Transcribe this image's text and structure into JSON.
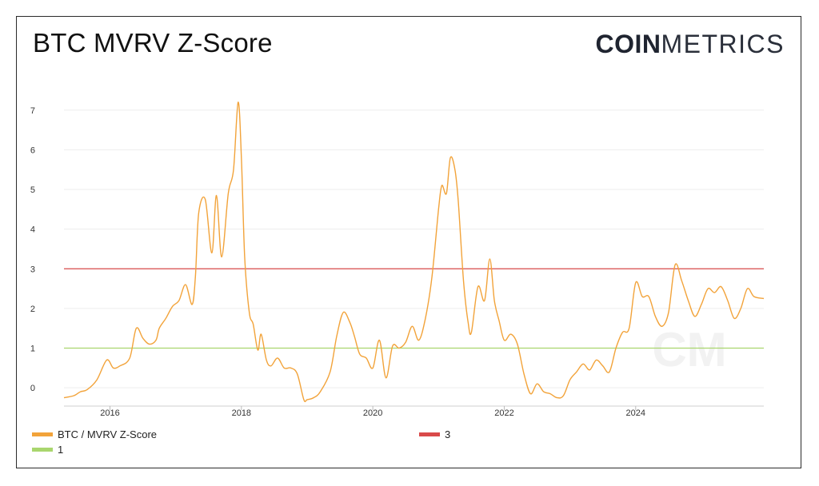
{
  "title": "BTC MVRV Z-Score",
  "logo": {
    "bold": "COIN",
    "light": "METRICS",
    "watermark": "CM"
  },
  "chart_data": {
    "type": "line",
    "title": "BTC MVRV Z-Score",
    "xlabel": "",
    "ylabel": "",
    "xlim": [
      2015.3,
      2025.95
    ],
    "ylim": [
      -0.3,
      7.5
    ],
    "x_ticks": [
      "2016",
      "2018",
      "2020",
      "2022",
      "2024"
    ],
    "y_ticks": [
      "0",
      "1",
      "2",
      "3",
      "4",
      "5",
      "6",
      "7"
    ],
    "grid": true,
    "legend_position": "bottom",
    "series": [
      {
        "name": "BTC / MVRV Z-Score",
        "color": "#F2A33A",
        "x": [
          2015.3,
          2015.45,
          2015.55,
          2015.65,
          2015.8,
          2015.95,
          2016.05,
          2016.15,
          2016.3,
          2016.4,
          2016.5,
          2016.6,
          2016.7,
          2016.75,
          2016.85,
          2016.95,
          2017.05,
          2017.15,
          2017.25,
          2017.3,
          2017.35,
          2017.45,
          2017.55,
          2017.62,
          2017.7,
          2017.8,
          2017.88,
          2017.95,
          2018.0,
          2018.05,
          2018.12,
          2018.18,
          2018.25,
          2018.3,
          2018.38,
          2018.45,
          2018.55,
          2018.65,
          2018.75,
          2018.85,
          2018.95,
          2019.0,
          2019.1,
          2019.2,
          2019.35,
          2019.45,
          2019.55,
          2019.65,
          2019.72,
          2019.8,
          2019.9,
          2020.0,
          2020.1,
          2020.2,
          2020.3,
          2020.4,
          2020.5,
          2020.6,
          2020.7,
          2020.8,
          2020.9,
          2021.0,
          2021.05,
          2021.12,
          2021.18,
          2021.25,
          2021.3,
          2021.38,
          2021.45,
          2021.5,
          2021.6,
          2021.7,
          2021.78,
          2021.85,
          2021.92,
          2022.0,
          2022.1,
          2022.2,
          2022.3,
          2022.4,
          2022.5,
          2022.6,
          2022.7,
          2022.8,
          2022.9,
          2023.0,
          2023.1,
          2023.2,
          2023.3,
          2023.4,
          2023.5,
          2023.6,
          2023.7,
          2023.8,
          2023.9,
          2024.0,
          2024.1,
          2024.2,
          2024.3,
          2024.4,
          2024.5,
          2024.6,
          2024.7,
          2024.8,
          2024.9,
          2025.0,
          2025.1,
          2025.2,
          2025.3,
          2025.4,
          2025.5,
          2025.6,
          2025.7,
          2025.8,
          2025.95
        ],
        "values": [
          -0.25,
          -0.2,
          -0.1,
          -0.05,
          0.2,
          0.7,
          0.5,
          0.55,
          0.75,
          1.5,
          1.25,
          1.1,
          1.2,
          1.5,
          1.75,
          2.05,
          2.2,
          2.6,
          2.1,
          2.8,
          4.4,
          4.75,
          3.4,
          4.85,
          3.3,
          4.9,
          5.5,
          7.2,
          5.8,
          3.3,
          1.9,
          1.6,
          0.95,
          1.35,
          0.7,
          0.55,
          0.75,
          0.5,
          0.5,
          0.35,
          -0.3,
          -0.3,
          -0.25,
          -0.1,
          0.4,
          1.3,
          1.9,
          1.65,
          1.3,
          0.85,
          0.75,
          0.5,
          1.2,
          0.25,
          1.05,
          1.0,
          1.15,
          1.55,
          1.2,
          1.75,
          2.8,
          4.5,
          5.1,
          4.9,
          5.8,
          5.5,
          4.7,
          2.7,
          1.65,
          1.4,
          2.55,
          2.2,
          3.25,
          2.2,
          1.7,
          1.2,
          1.35,
          1.1,
          0.35,
          -0.15,
          0.1,
          -0.1,
          -0.15,
          -0.25,
          -0.2,
          0.2,
          0.4,
          0.6,
          0.45,
          0.7,
          0.55,
          0.4,
          1.0,
          1.4,
          1.5,
          2.65,
          2.3,
          2.3,
          1.8,
          1.55,
          1.9,
          3.1,
          2.7,
          2.2,
          1.8,
          2.1,
          2.5,
          2.4,
          2.55,
          2.2,
          1.75,
          2.0,
          2.5,
          2.3,
          2.25
        ]
      },
      {
        "name": "3",
        "color": "#D94A4A",
        "value": 3
      },
      {
        "name": "1",
        "color": "#A9D66E",
        "value": 1
      }
    ]
  }
}
